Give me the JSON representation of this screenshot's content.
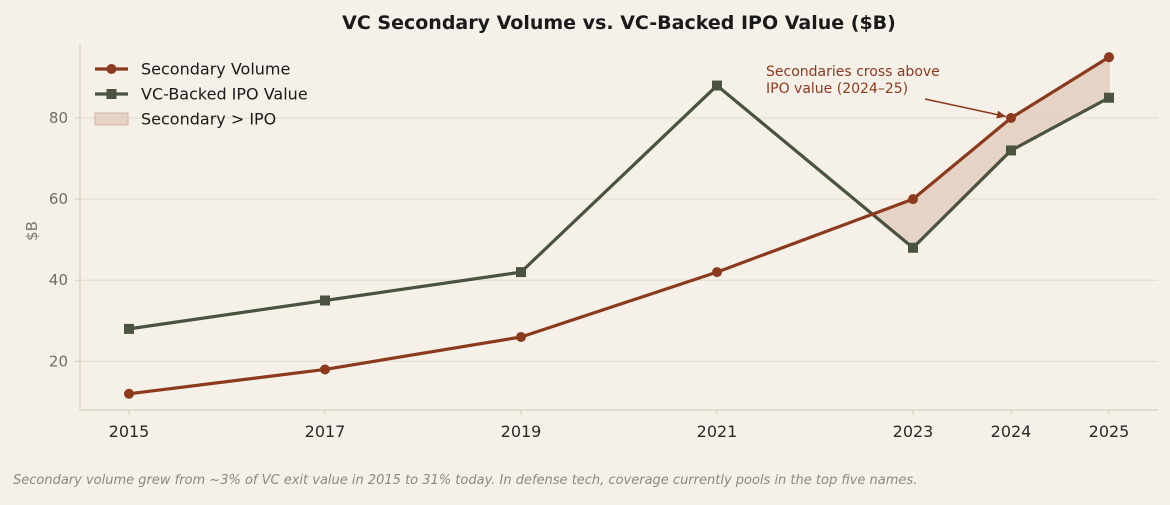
{
  "caption": "Secondary volume grew from ~3% of VC exit value in 2015 to 31% today. In defense tech, coverage currently pools in the top five names.",
  "colors": {
    "background": "#f5f0e8",
    "secondary": "#8b3a1e",
    "ipo": "#4a5240",
    "fill": "#dfc9b9",
    "grid": "#e4dccb",
    "axis": "#d8d0bf",
    "annotation": "#8b3a1e"
  },
  "chart_data": {
    "type": "line",
    "title": "VC Secondary Volume vs. VC-Backed IPO Value ($B)",
    "xlabel": "",
    "ylabel": "$B",
    "x": [
      2015,
      2017,
      2019,
      2021,
      2023,
      2024,
      2025
    ],
    "x_tick_labels": [
      "2015",
      "2017",
      "2019",
      "2021",
      "2023",
      "2024",
      "2025"
    ],
    "y_ticks": [
      20,
      40,
      60,
      80
    ],
    "y_tick_labels": [
      "20",
      "40",
      "60",
      "80"
    ],
    "xlim": [
      2014.5,
      2025.5
    ],
    "ylim": [
      8,
      98
    ],
    "grid": true,
    "legend_position": "top-left",
    "series": [
      {
        "name": "Secondary Volume",
        "marker": "circle",
        "values": [
          12,
          18,
          26,
          42,
          60,
          80,
          95
        ]
      },
      {
        "name": "VC-Backed IPO Value",
        "marker": "square",
        "values": [
          28,
          35,
          42,
          88,
          48,
          72,
          85
        ]
      }
    ],
    "fill_between": {
      "label": "Secondary > IPO",
      "where": "Secondary Volume > VC-Backed IPO Value"
    },
    "annotation": {
      "lines": [
        "Secondaries cross above",
        "IPO value (2024–25)"
      ],
      "target_x": 2024,
      "target_y": 80
    }
  }
}
